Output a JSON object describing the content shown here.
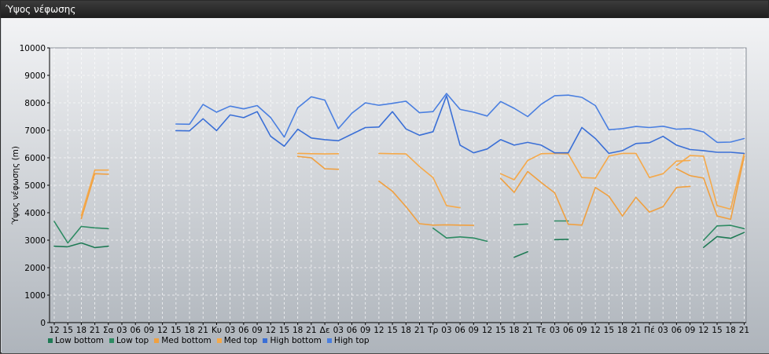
{
  "window": {
    "title": "Ύψος νέφωσης"
  },
  "chart_data": {
    "type": "line",
    "ylabel": "Ύψος νέφωσης (m)",
    "ylim": [
      0,
      10000
    ],
    "yticks": [
      "0",
      "1000",
      "2000",
      "3000",
      "4000",
      "5000",
      "6000",
      "7000",
      "8000",
      "9000",
      "10000"
    ],
    "grid": true,
    "legend_position": "bottom-left",
    "x_labels": [
      "12",
      "15",
      "18",
      "21",
      "Σα",
      "03",
      "06",
      "09",
      "12",
      "15",
      "18",
      "21",
      "Κυ",
      "03",
      "06",
      "09",
      "12",
      "15",
      "18",
      "21",
      "Δε",
      "03",
      "06",
      "09",
      "12",
      "15",
      "18",
      "21",
      "Τρ",
      "03",
      "06",
      "09",
      "12",
      "15",
      "18",
      "21",
      "Τε",
      "03",
      "06",
      "09",
      "12",
      "15",
      "18",
      "21",
      "Πέ",
      "03",
      "06",
      "09",
      "12",
      "15",
      "18",
      "21"
    ],
    "series": [
      {
        "name": "Low bottom",
        "color": "#1f7a55",
        "segments": [
          [
            [
              0,
              2780
            ],
            [
              1,
              2760
            ],
            [
              2,
              2900
            ],
            [
              3,
              2730
            ],
            [
              4,
              2780
            ]
          ],
          [
            [
              34,
              2380
            ],
            [
              35,
              2580
            ]
          ],
          [
            [
              37,
              3020
            ],
            [
              38,
              3030
            ]
          ],
          [
            [
              48,
              2740
            ],
            [
              49,
              3130
            ],
            [
              50,
              3070
            ],
            [
              51,
              3280
            ]
          ]
        ]
      },
      {
        "name": "Low top",
        "color": "#2e8b63",
        "segments": [
          [
            [
              0,
              3680
            ],
            [
              1,
              2900
            ],
            [
              2,
              3500
            ],
            [
              3,
              3450
            ],
            [
              4,
              3420
            ]
          ],
          [
            [
              28,
              3440
            ],
            [
              29,
              3080
            ],
            [
              30,
              3120
            ],
            [
              31,
              3080
            ],
            [
              32,
              2960
            ]
          ],
          [
            [
              34,
              3560
            ],
            [
              35,
              3590
            ]
          ],
          [
            [
              37,
              3700
            ],
            [
              38,
              3700
            ]
          ],
          [
            [
              48,
              3000
            ],
            [
              49,
              3520
            ],
            [
              50,
              3540
            ],
            [
              51,
              3420
            ]
          ]
        ]
      },
      {
        "name": "Med bottom",
        "color": "#f0a040",
        "segments": [
          [
            [
              2,
              3780
            ],
            [
              3,
              5420
            ],
            [
              4,
              5400
            ]
          ],
          [
            [
              18,
              6050
            ],
            [
              19,
              6000
            ],
            [
              20,
              5600
            ],
            [
              21,
              5580
            ]
          ],
          [
            [
              24,
              5150
            ],
            [
              25,
              4780
            ],
            [
              26,
              4220
            ],
            [
              27,
              3600
            ],
            [
              28,
              3550
            ],
            [
              29,
              3560
            ],
            [
              30,
              3550
            ],
            [
              31,
              3540
            ]
          ],
          [
            [
              33,
              5250
            ],
            [
              34,
              4740
            ],
            [
              35,
              5500
            ],
            [
              36,
              5100
            ],
            [
              37,
              4720
            ],
            [
              38,
              3580
            ],
            [
              39,
              3550
            ],
            [
              40,
              4920
            ],
            [
              41,
              4600
            ],
            [
              42,
              3880
            ],
            [
              43,
              4560
            ],
            [
              44,
              4020
            ],
            [
              45,
              4220
            ],
            [
              46,
              4920
            ],
            [
              47,
              4960
            ]
          ],
          [
            [
              46,
              5600
            ],
            [
              47,
              5350
            ],
            [
              48,
              5260
            ],
            [
              49,
              3880
            ],
            [
              50,
              3760
            ],
            [
              51,
              6050
            ]
          ]
        ]
      },
      {
        "name": "Med top",
        "color": "#f5a94a",
        "segments": [
          [
            [
              2,
              3900
            ],
            [
              3,
              5550
            ],
            [
              4,
              5550
            ]
          ],
          [
            [
              18,
              6160
            ],
            [
              19,
              6150
            ],
            [
              20,
              6140
            ],
            [
              21,
              6150
            ]
          ],
          [
            [
              24,
              6160
            ],
            [
              25,
              6150
            ],
            [
              26,
              6140
            ],
            [
              27,
              5680
            ],
            [
              28,
              5280
            ],
            [
              29,
              4260
            ],
            [
              30,
              4180
            ]
          ],
          [
            [
              33,
              5420
            ],
            [
              34,
              5200
            ],
            [
              35,
              5900
            ],
            [
              36,
              6150
            ],
            [
              37,
              6160
            ],
            [
              38,
              6140
            ],
            [
              39,
              5280
            ],
            [
              40,
              5260
            ],
            [
              41,
              6060
            ],
            [
              42,
              6160
            ],
            [
              43,
              6160
            ],
            [
              44,
              5280
            ],
            [
              45,
              5420
            ],
            [
              46,
              5880
            ],
            [
              47,
              5900
            ]
          ],
          [
            [
              46,
              5720
            ],
            [
              47,
              6080
            ],
            [
              48,
              6060
            ],
            [
              49,
              4260
            ],
            [
              50,
              4130
            ],
            [
              51,
              6160
            ]
          ]
        ]
      },
      {
        "name": "High bottom",
        "color": "#3a6fd6",
        "segments": [
          [
            [
              9,
              6990
            ],
            [
              10,
              6980
            ],
            [
              11,
              7420
            ],
            [
              12,
              6990
            ],
            [
              13,
              7560
            ],
            [
              14,
              7460
            ],
            [
              15,
              7680
            ],
            [
              16,
              6780
            ],
            [
              17,
              6420
            ],
            [
              18,
              7040
            ],
            [
              19,
              6720
            ],
            [
              20,
              6660
            ],
            [
              21,
              6620
            ],
            [
              22,
              6860
            ],
            [
              23,
              7100
            ],
            [
              24,
              7120
            ],
            [
              25,
              7680
            ],
            [
              26,
              7050
            ],
            [
              27,
              6820
            ],
            [
              28,
              6950
            ],
            [
              29,
              8260
            ],
            [
              30,
              6460
            ],
            [
              31,
              6180
            ],
            [
              32,
              6320
            ],
            [
              33,
              6660
            ],
            [
              34,
              6460
            ],
            [
              35,
              6560
            ],
            [
              36,
              6460
            ],
            [
              37,
              6180
            ],
            [
              38,
              6180
            ],
            [
              39,
              7100
            ],
            [
              40,
              6700
            ],
            [
              41,
              6160
            ],
            [
              42,
              6260
            ],
            [
              43,
              6520
            ],
            [
              44,
              6550
            ],
            [
              45,
              6780
            ],
            [
              46,
              6460
            ],
            [
              47,
              6300
            ],
            [
              48,
              6260
            ],
            [
              49,
              6200
            ],
            [
              50,
              6200
            ],
            [
              51,
              6160
            ]
          ]
        ]
      },
      {
        "name": "High top",
        "color": "#4a7fe0",
        "segments": [
          [
            [
              9,
              7230
            ],
            [
              10,
              7220
            ],
            [
              11,
              7940
            ],
            [
              12,
              7660
            ],
            [
              13,
              7880
            ],
            [
              14,
              7780
            ],
            [
              15,
              7900
            ],
            [
              16,
              7460
            ],
            [
              17,
              6750
            ],
            [
              18,
              7820
            ],
            [
              19,
              8220
            ],
            [
              20,
              8100
            ],
            [
              21,
              7060
            ],
            [
              22,
              7620
            ],
            [
              23,
              8000
            ],
            [
              24,
              7910
            ],
            [
              25,
              7980
            ],
            [
              26,
              8060
            ],
            [
              27,
              7640
            ],
            [
              28,
              7680
            ],
            [
              29,
              8340
            ],
            [
              30,
              7760
            ],
            [
              31,
              7660
            ],
            [
              32,
              7520
            ],
            [
              33,
              8050
            ],
            [
              34,
              7800
            ],
            [
              35,
              7500
            ],
            [
              36,
              7950
            ],
            [
              37,
              8260
            ],
            [
              38,
              8280
            ],
            [
              39,
              8200
            ],
            [
              40,
              7900
            ],
            [
              41,
              7020
            ],
            [
              42,
              7060
            ],
            [
              43,
              7140
            ],
            [
              44,
              7100
            ],
            [
              45,
              7150
            ],
            [
              46,
              7040
            ],
            [
              47,
              7060
            ],
            [
              48,
              6940
            ],
            [
              49,
              6560
            ],
            [
              50,
              6570
            ],
            [
              51,
              6700
            ]
          ]
        ]
      }
    ]
  }
}
